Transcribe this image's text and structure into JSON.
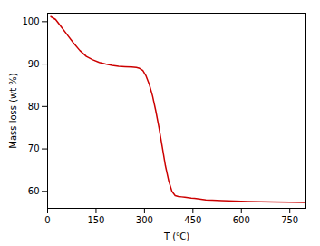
{
  "chart_data": {
    "type": "line",
    "xlabel": "T (⁰C)",
    "ylabel": "Mass loss (wt %)",
    "color": "#cc0000",
    "xlim": [
      0,
      800
    ],
    "ylim": [
      56,
      102
    ],
    "xticks": [
      0,
      150,
      300,
      450,
      600,
      750
    ],
    "yticks": [
      60,
      70,
      80,
      90,
      100
    ],
    "x": [
      10,
      25,
      40,
      60,
      80,
      100,
      120,
      140,
      160,
      180,
      200,
      220,
      240,
      260,
      275,
      285,
      295,
      305,
      315,
      325,
      335,
      345,
      355,
      365,
      375,
      385,
      395,
      405,
      415,
      425,
      435,
      445,
      455,
      470,
      490,
      510,
      540,
      580,
      620,
      660,
      700,
      750,
      800
    ],
    "values": [
      101.2,
      100.5,
      99.0,
      97.0,
      95.0,
      93.2,
      91.8,
      91.0,
      90.4,
      90.0,
      89.7,
      89.5,
      89.4,
      89.3,
      89.2,
      89.0,
      88.5,
      87.2,
      85.2,
      82.5,
      79.0,
      75.0,
      70.5,
      66.0,
      62.5,
      60.0,
      59.0,
      58.8,
      58.7,
      58.6,
      58.5,
      58.4,
      58.35,
      58.2,
      58.0,
      57.9,
      57.8,
      57.7,
      57.6,
      57.55,
      57.5,
      57.45,
      57.4
    ]
  }
}
